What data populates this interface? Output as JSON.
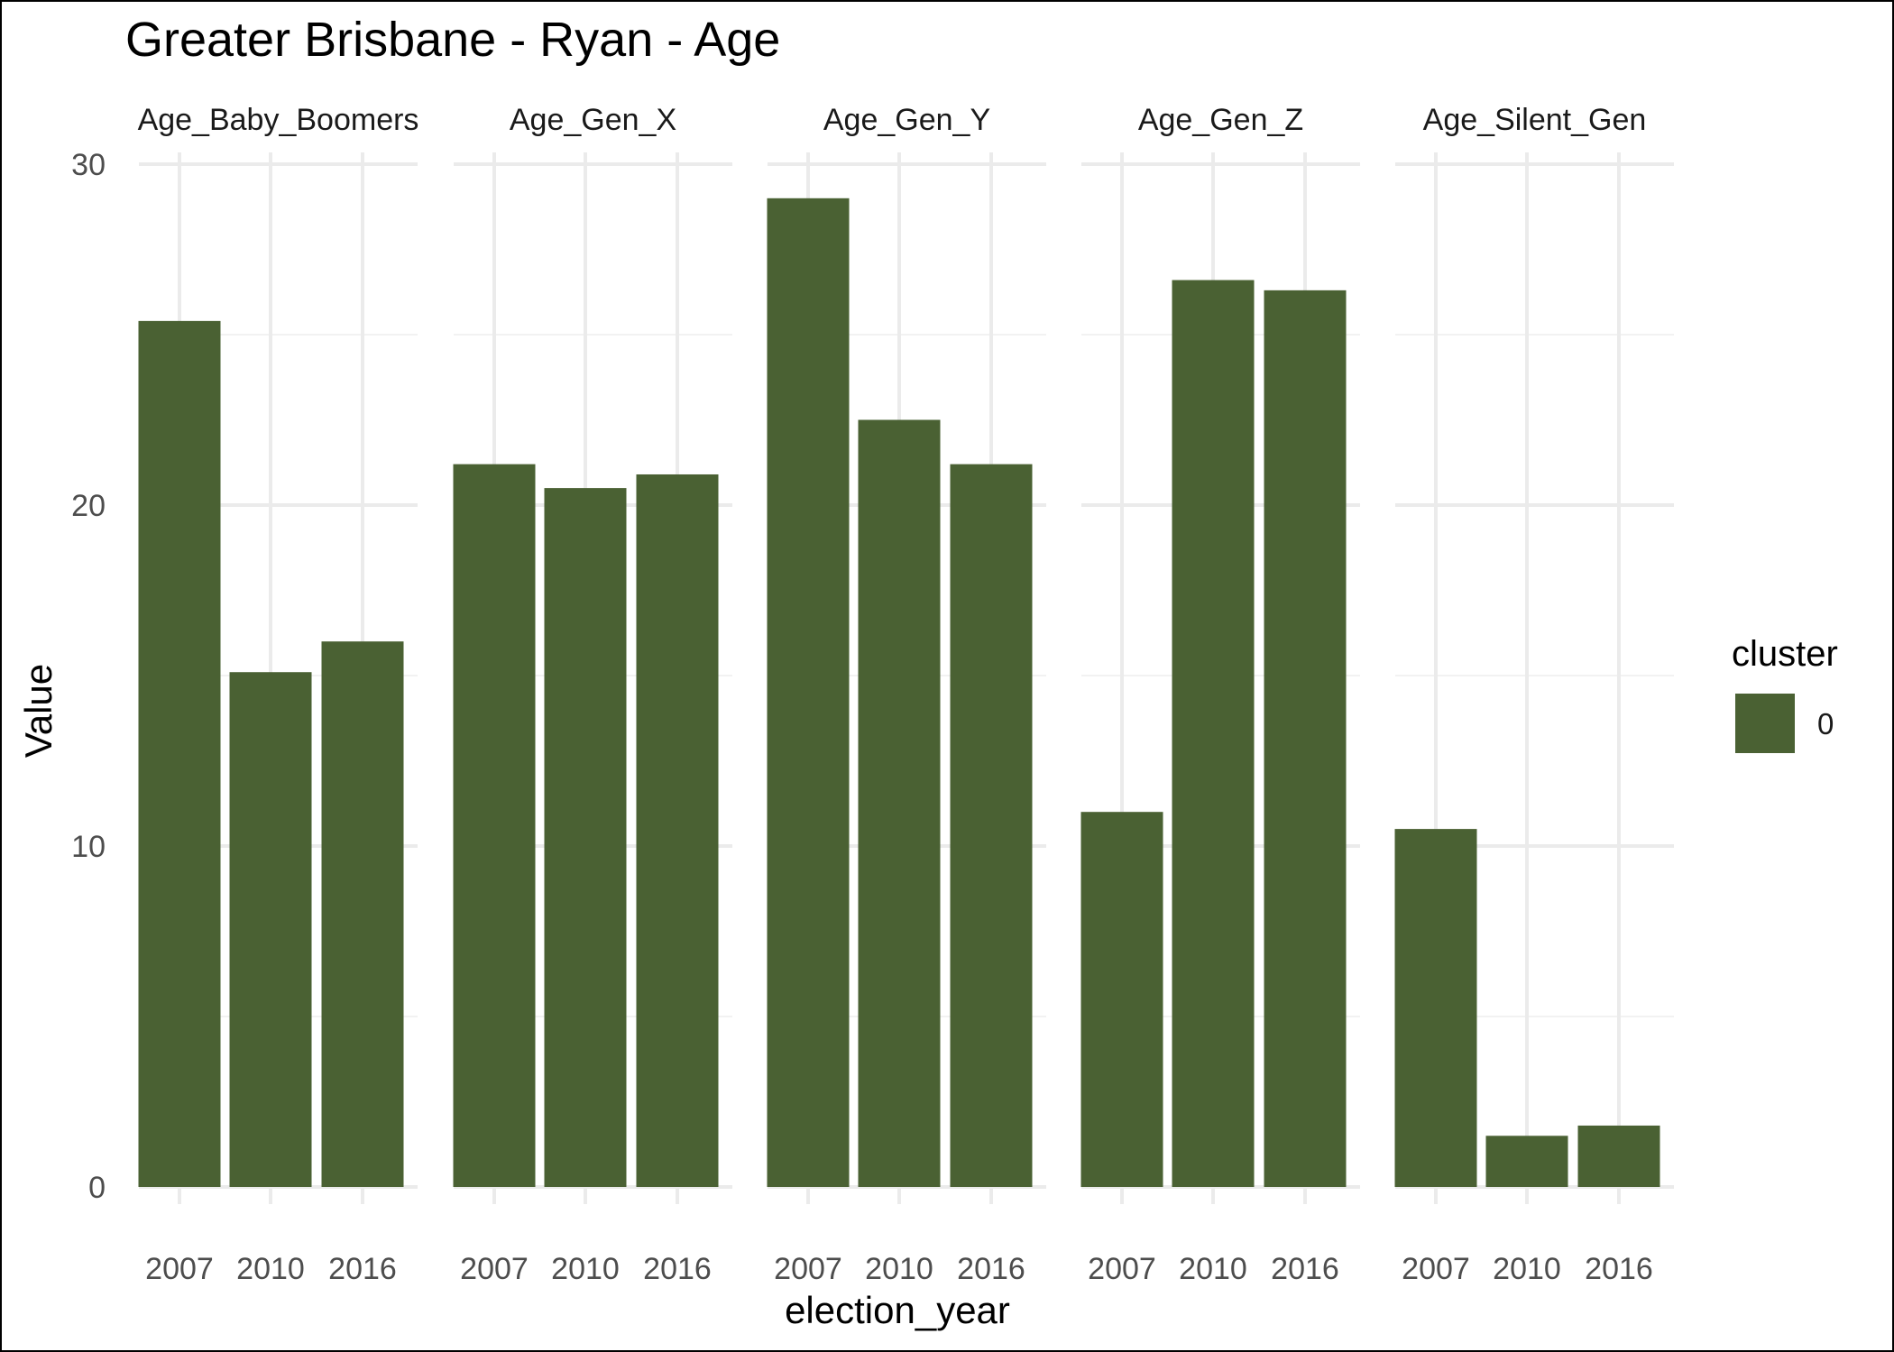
{
  "chart_data": {
    "type": "bar",
    "title": "Greater Brisbane - Ryan - Age",
    "xlabel": "election_year",
    "ylabel": "Value",
    "ylim": [
      0,
      30
    ],
    "yticks": [
      0,
      10,
      20,
      30
    ],
    "grid": true,
    "facet_labels": [
      "Age_Baby_Boomers",
      "Age_Gen_X",
      "Age_Gen_Y",
      "Age_Gen_Z",
      "Age_Silent_Gen"
    ],
    "categories": [
      "2007",
      "2010",
      "2016"
    ],
    "panels": [
      {
        "facet": "Age_Baby_Boomers",
        "values": [
          25.4,
          15.1,
          16.0
        ]
      },
      {
        "facet": "Age_Gen_X",
        "values": [
          21.2,
          20.5,
          20.9
        ]
      },
      {
        "facet": "Age_Gen_Y",
        "values": [
          29.0,
          22.5,
          21.2
        ]
      },
      {
        "facet": "Age_Gen_Z",
        "values": [
          11.0,
          26.6,
          26.3
        ]
      },
      {
        "facet": "Age_Silent_Gen",
        "values": [
          10.5,
          1.5,
          1.8
        ]
      }
    ],
    "bar_color": "#4a6133",
    "legend": {
      "title": "cluster",
      "items": [
        "0"
      ],
      "position": "right"
    }
  }
}
